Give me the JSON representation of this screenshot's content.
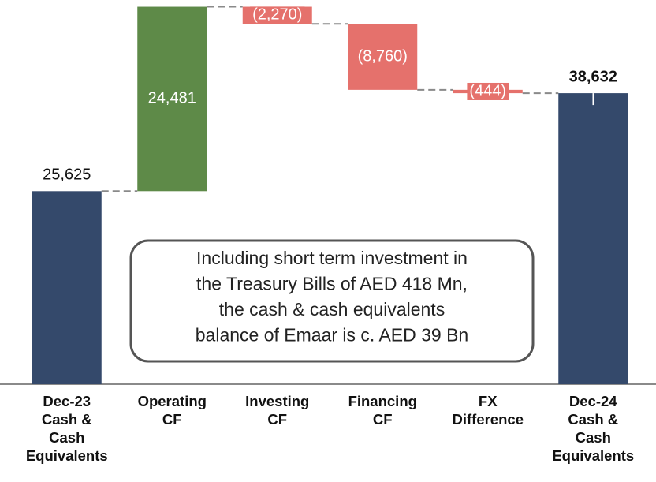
{
  "chart_data": {
    "type": "waterfall",
    "categories": [
      [
        "Dec-23",
        "Cash &",
        "Cash",
        "Equivalents"
      ],
      [
        "Operating",
        "CF"
      ],
      [
        "Investing",
        "CF"
      ],
      [
        "Financing",
        "CF"
      ],
      [
        "FX",
        "Difference"
      ],
      [
        "Dec-24",
        "Cash &",
        "Cash",
        "Equivalents"
      ]
    ],
    "values": [
      25625,
      24481,
      -2270,
      -8760,
      -444,
      38632
    ],
    "value_labels": [
      "25,625",
      "24,481",
      "(2,270)",
      "(8,760)",
      "(444)",
      "38,632"
    ],
    "kinds": [
      "total",
      "change",
      "change",
      "change",
      "change",
      "total"
    ],
    "colors": {
      "total": "#34496b",
      "increase": "#5e8a48",
      "decrease": "#e5716c"
    },
    "ylim": [
      0,
      51000
    ],
    "annotation": [
      "Including short term investment in",
      "the Treasury Bills of AED 418 Mn,",
      "the cash & cash equivalents",
      "balance of Emaar is c. AED 39 Bn"
    ]
  }
}
